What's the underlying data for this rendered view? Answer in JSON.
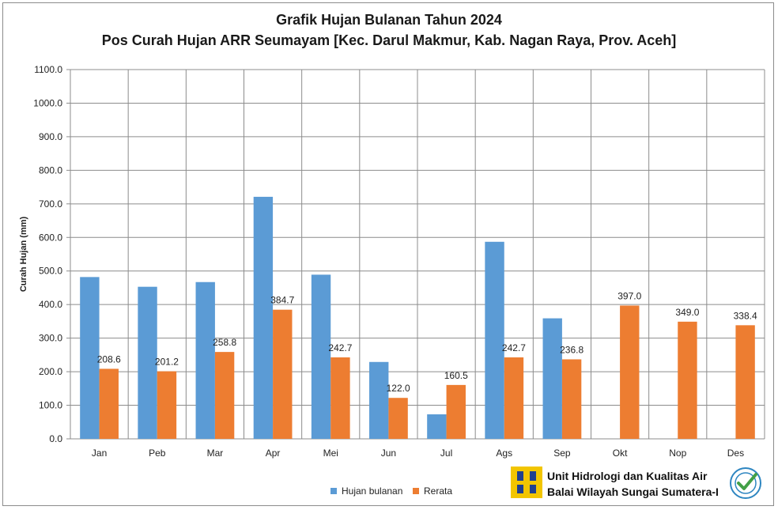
{
  "chart_data": {
    "type": "bar",
    "title": "Grafik Hujan Bulanan Tahun 2024",
    "subtitle": "Pos Curah Hujan ARR Seumayam [Kec. Darul Makmur,  Kab. Nagan Raya, Prov. Aceh]",
    "xlabel": "",
    "ylabel": "Curah Hujan (mm)",
    "ylim": [
      0,
      1100
    ],
    "ytick_step": 100,
    "ytick_labels": [
      "0.0",
      "100.0",
      "200.0",
      "300.0",
      "400.0",
      "500.0",
      "600.0",
      "700.0",
      "800.0",
      "900.0",
      "1000.0",
      "1100.0"
    ],
    "grid": true,
    "categories": [
      "Jan",
      "Peb",
      "Mar",
      "Apr",
      "Mei",
      "Jun",
      "Jul",
      "Ags",
      "Sep",
      "Okt",
      "Nop",
      "Des"
    ],
    "series": [
      {
        "name": "Hujan bulanan",
        "color": "#5b9bd5",
        "values": [
          482,
          453,
          467,
          721,
          489,
          229,
          73,
          587,
          359,
          null,
          null,
          null
        ]
      },
      {
        "name": "Rerata",
        "color": "#ed7d31",
        "values": [
          208.6,
          201.2,
          258.8,
          384.7,
          242.7,
          122.0,
          160.5,
          242.7,
          236.8,
          397.0,
          349.0,
          338.4
        ],
        "data_labels": [
          "208.6",
          "201.2",
          "258.8",
          "384.7",
          "242.7",
          "122.0",
          "160.5",
          "242.7",
          "236.8",
          "397.0",
          "349.0",
          "338.4"
        ]
      }
    ],
    "legend_position": "bottom"
  },
  "branding": {
    "line1": "Unit Hidrologi dan Kualitas Air",
    "line2": "Balai Wilayah Sungai Sumatera-I",
    "logo_color_yellow": "#f2c500",
    "logo_color_blue": "#1f3f8f",
    "badge_color": "#2e86c1",
    "check_color": "#43a047"
  }
}
